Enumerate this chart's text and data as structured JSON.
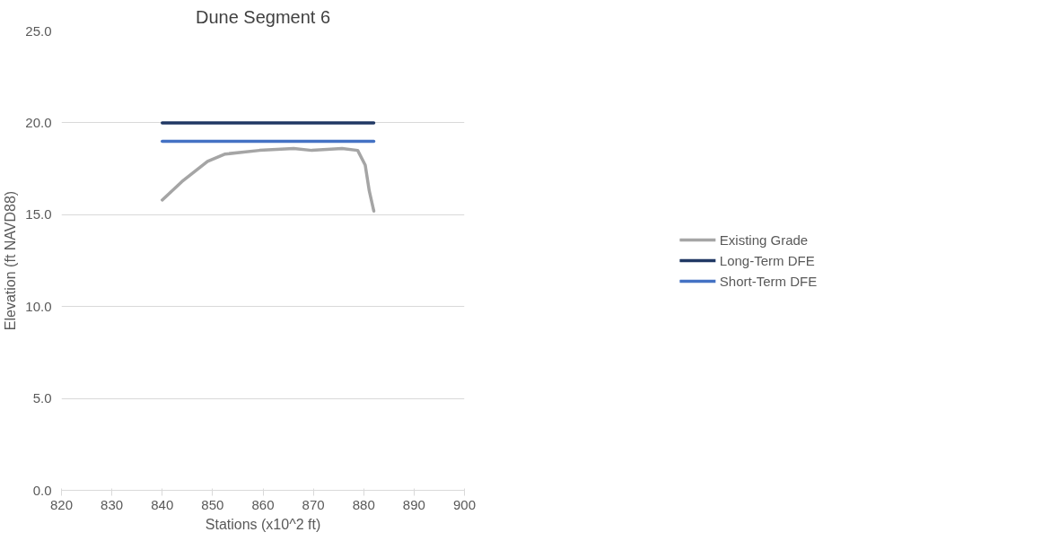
{
  "chart_data": {
    "type": "line",
    "title": "Dune Segment 6",
    "xlabel": "Stations (x10^2 ft)",
    "ylabel": "Elevation (ft NAVD88)",
    "series": [
      {
        "name": "Existing Grade",
        "color": "#a5a5a5",
        "x": [
          840,
          843.9,
          849.0,
          852.5,
          859.3,
          866.1,
          869.7,
          875.7,
          878.8,
          880.3,
          881.1,
          882.0
        ],
        "values": [
          15.8,
          16.8,
          17.9,
          18.3,
          18.5,
          18.6,
          18.5,
          18.6,
          18.5,
          17.7,
          16.3,
          15.2
        ]
      },
      {
        "name": "Long-Term DFE",
        "color": "#203864",
        "x": [
          840,
          882
        ],
        "values": [
          20.0,
          20.0
        ]
      },
      {
        "name": "Short-Term DFE",
        "color": "#4472c4",
        "x": [
          840,
          882
        ],
        "values": [
          19.0,
          19.0
        ]
      }
    ],
    "xlim": [
      820,
      900
    ],
    "xticks": [
      820,
      830,
      840,
      850,
      860,
      870,
      880,
      890,
      900
    ],
    "ylim": [
      0,
      25
    ],
    "yticks": [
      {
        "value": 0,
        "label": "0.0"
      },
      {
        "value": 5,
        "label": "5.0"
      },
      {
        "value": 10,
        "label": "10.0"
      },
      {
        "value": 15,
        "label": "15.0"
      },
      {
        "value": 20,
        "label": "20.0"
      },
      {
        "value": 25,
        "label": "25.0"
      }
    ],
    "grid": "y",
    "legend": "right",
    "line_style": "solid",
    "marker": "none"
  }
}
